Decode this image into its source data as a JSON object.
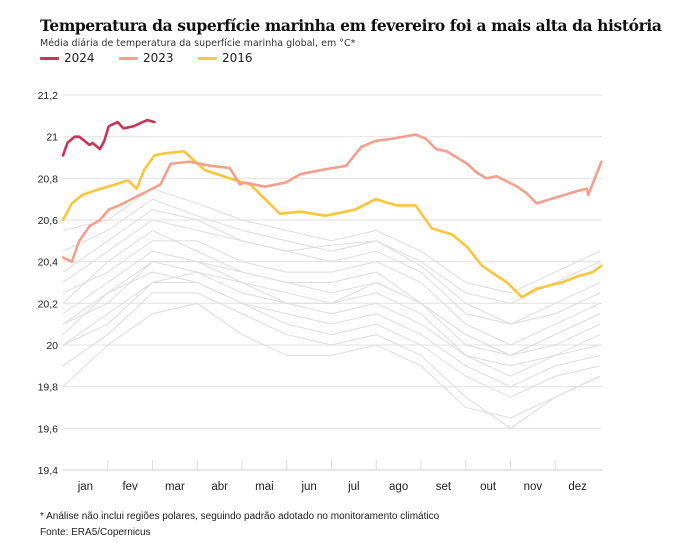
{
  "title": "Temperatura da superfície marinha em fevereiro foi a mais alta da história",
  "subtitle": "Média diária de temperatura da superfície marinha global, em °C*",
  "footnote": "* Análise não inclui regiões polares, seguindo padrão adotado no monitoramento climático",
  "source": "Fonte: ERA5/Copernicus",
  "chart_data": {
    "type": "line",
    "xlabel": "",
    "ylabel": "",
    "ylim": [
      19.4,
      21.2
    ],
    "yticks": [
      21.2,
      21,
      20.8,
      20.6,
      20.4,
      20.2,
      20,
      19.8,
      19.6,
      19.4
    ],
    "ytick_labels": [
      "21,2",
      "21",
      "20,8",
      "20,6",
      "20,4",
      "20,2",
      "20",
      "19,8",
      "19,6",
      "19,4"
    ],
    "xlim_day_of_year": [
      1,
      365
    ],
    "months": [
      "jan",
      "fev",
      "mar",
      "abr",
      "mai",
      "jun",
      "jul",
      "ago",
      "set",
      "out",
      "nov",
      "dez"
    ],
    "grid": true,
    "legend_position": "top-left",
    "series": [
      {
        "name": "2024",
        "color": "#cc3355",
        "highlight": true,
        "x": [
          1,
          4,
          9,
          12,
          19,
          21,
          26,
          29,
          32,
          38,
          42,
          49,
          52,
          58,
          63
        ],
        "y": [
          20.91,
          20.97,
          21.0,
          21.0,
          20.96,
          20.97,
          20.94,
          20.98,
          21.05,
          21.07,
          21.04,
          21.05,
          21.06,
          21.08,
          21.07
        ]
      },
      {
        "name": "2023",
        "color": "#f4a08c",
        "highlight": true,
        "x": [
          1,
          7,
          12,
          19,
          26,
          32,
          39,
          53,
          67,
          74,
          87,
          101,
          114,
          121,
          124,
          138,
          152,
          162,
          176,
          193,
          203,
          213,
          224,
          240,
          247,
          254,
          261,
          275,
          281,
          288,
          295,
          309,
          315,
          322,
          336,
          350,
          356,
          357,
          366
        ],
        "y": [
          20.42,
          20.4,
          20.5,
          20.57,
          20.6,
          20.65,
          20.67,
          20.72,
          20.77,
          20.87,
          20.88,
          20.86,
          20.85,
          20.77,
          20.78,
          20.76,
          20.78,
          20.82,
          20.84,
          20.86,
          20.95,
          20.98,
          20.99,
          21.01,
          20.99,
          20.94,
          20.93,
          20.87,
          20.83,
          20.8,
          20.81,
          20.76,
          20.73,
          20.68,
          20.71,
          20.74,
          20.75,
          20.72,
          20.88
        ]
      },
      {
        "name": "2016",
        "color": "#fcc53a",
        "highlight": true,
        "x": [
          1,
          7,
          14,
          22,
          36,
          45,
          51,
          56,
          63,
          70,
          83,
          97,
          114,
          128,
          138,
          148,
          162,
          179,
          199,
          213,
          227,
          240,
          251,
          265,
          275,
          285,
          302,
          312,
          322,
          339,
          350,
          360,
          366
        ],
        "y": [
          20.6,
          20.68,
          20.72,
          20.74,
          20.77,
          20.79,
          20.75,
          20.84,
          20.91,
          20.92,
          20.93,
          20.84,
          20.8,
          20.77,
          20.7,
          20.63,
          20.64,
          20.62,
          20.65,
          20.7,
          20.67,
          20.67,
          20.56,
          20.53,
          20.47,
          20.38,
          20.3,
          20.23,
          20.27,
          20.3,
          20.33,
          20.35,
          20.38
        ]
      }
    ],
    "background_series_color": "#dddddd",
    "background_series_monthly": [
      [
        20.55,
        20.6,
        20.75,
        20.68,
        20.6,
        20.55,
        20.5,
        20.55,
        20.45,
        20.3,
        20.25,
        20.35,
        20.45
      ],
      [
        20.45,
        20.55,
        20.7,
        20.62,
        20.55,
        20.5,
        20.45,
        20.5,
        20.4,
        20.25,
        20.2,
        20.3,
        20.4
      ],
      [
        20.3,
        20.45,
        20.6,
        20.55,
        20.5,
        20.45,
        20.48,
        20.5,
        20.38,
        20.2,
        20.1,
        20.15,
        20.25
      ],
      [
        20.25,
        20.35,
        20.5,
        20.5,
        20.4,
        20.35,
        20.35,
        20.4,
        20.3,
        20.1,
        20.0,
        20.1,
        20.2
      ],
      [
        20.15,
        20.3,
        20.45,
        20.4,
        20.35,
        20.3,
        20.3,
        20.35,
        20.2,
        20.05,
        19.95,
        20.0,
        20.1
      ],
      [
        20.1,
        20.2,
        20.4,
        20.35,
        20.25,
        20.2,
        20.2,
        20.25,
        20.15,
        19.95,
        19.85,
        19.95,
        20.0
      ],
      [
        20.0,
        20.15,
        20.3,
        20.3,
        20.2,
        20.15,
        20.1,
        20.15,
        20.05,
        19.9,
        19.8,
        19.9,
        19.95
      ],
      [
        19.9,
        20.05,
        20.25,
        20.25,
        20.15,
        20.05,
        20.0,
        20.05,
        19.95,
        19.75,
        19.6,
        19.75,
        19.85
      ],
      [
        20.05,
        20.25,
        20.35,
        20.3,
        20.2,
        20.1,
        20.05,
        20.1,
        20.0,
        19.85,
        19.75,
        19.85,
        19.9
      ],
      [
        20.2,
        20.4,
        20.55,
        20.45,
        20.35,
        20.3,
        20.25,
        20.3,
        20.2,
        20.05,
        19.95,
        20.05,
        20.15
      ],
      [
        19.8,
        20.0,
        20.15,
        20.2,
        20.05,
        19.95,
        19.95,
        20.0,
        19.9,
        19.7,
        19.65,
        19.75,
        19.85
      ],
      [
        20.35,
        20.5,
        20.65,
        20.6,
        20.5,
        20.45,
        20.4,
        20.45,
        20.35,
        20.15,
        20.1,
        20.2,
        20.3
      ],
      [
        20.0,
        20.1,
        20.3,
        20.35,
        20.3,
        20.2,
        20.15,
        20.2,
        20.1,
        19.95,
        19.9,
        19.95,
        20.05
      ],
      [
        20.1,
        20.25,
        20.4,
        20.4,
        20.3,
        20.25,
        20.2,
        20.3,
        20.2,
        20.0,
        19.95,
        20.05,
        20.15
      ]
    ]
  }
}
